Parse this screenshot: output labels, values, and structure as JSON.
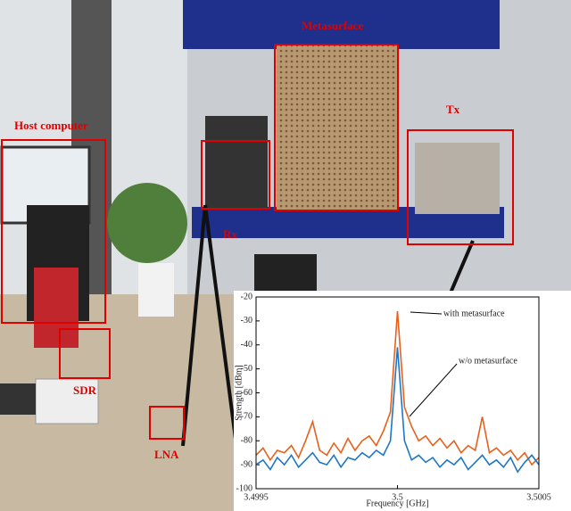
{
  "labels": {
    "metasurface": "Metasurface",
    "host": "Host computer",
    "tx": "Tx",
    "rx": "Rx",
    "sdr": "SDR",
    "lna": "LNA"
  },
  "chart_data": {
    "type": "line",
    "x": [
      3.4995,
      3.499525,
      3.49955,
      3.499575,
      3.4996,
      3.499625,
      3.49965,
      3.499675,
      3.4997,
      3.499725,
      3.49975,
      3.499775,
      3.4998,
      3.499825,
      3.49985,
      3.499875,
      3.4999,
      3.499925,
      3.49995,
      3.499975,
      3.5,
      3.500025,
      3.50005,
      3.500075,
      3.5001,
      3.500125,
      3.50015,
      3.500175,
      3.5002,
      3.500225,
      3.50025,
      3.500275,
      3.5003,
      3.500325,
      3.50035,
      3.500375,
      3.5004,
      3.500425,
      3.50045,
      3.500475,
      3.5005
    ],
    "series": [
      {
        "name": "with metasurface",
        "color": "#e8601c",
        "values": [
          -86,
          -83,
          -88,
          -84,
          -85,
          -82,
          -87,
          -80,
          -72,
          -84,
          -86,
          -81,
          -85,
          -79,
          -84,
          -80,
          -78,
          -82,
          -76,
          -68,
          -26,
          -66,
          -74,
          -80,
          -78,
          -82,
          -79,
          -83,
          -80,
          -85,
          -82,
          -84,
          -70,
          -85,
          -83,
          -86,
          -84,
          -88,
          -85,
          -90,
          -87
        ]
      },
      {
        "name": "w/o metasurface",
        "color": "#1f77c4",
        "values": [
          -90,
          -88,
          -92,
          -87,
          -90,
          -86,
          -91,
          -88,
          -85,
          -89,
          -90,
          -86,
          -91,
          -87,
          -88,
          -85,
          -87,
          -84,
          -86,
          -80,
          -41,
          -80,
          -88,
          -86,
          -89,
          -87,
          -91,
          -88,
          -90,
          -87,
          -92,
          -89,
          -86,
          -90,
          -88,
          -91,
          -87,
          -93,
          -89,
          -86,
          -90
        ]
      }
    ],
    "xlabel": "Frequency [GHz]",
    "ylabel": "Strength [dBm]",
    "xlim": [
      3.4995,
      3.5005
    ],
    "xticks": [
      3.4995,
      3.5,
      3.5005
    ],
    "ylim": [
      -100,
      -20
    ],
    "yticks": [
      -100,
      -90,
      -80,
      -70,
      -60,
      -50,
      -40,
      -30,
      -20
    ]
  }
}
